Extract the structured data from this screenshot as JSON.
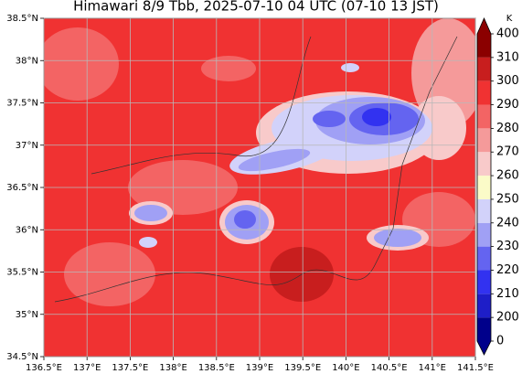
{
  "chart_data": {
    "type": "map",
    "title": "Himawari 8/9 Tbb, 2025-07-10 04 UTC (07-10 13 JST)",
    "xlim": [
      136.5,
      141.5
    ],
    "ylim": [
      34.5,
      38.5
    ],
    "xticks": [
      {
        "value": 136.5,
        "label": "136.5°E"
      },
      {
        "value": 137,
        "label": "137°E"
      },
      {
        "value": 137.5,
        "label": "137.5°E"
      },
      {
        "value": 138,
        "label": "138°E"
      },
      {
        "value": 138.5,
        "label": "138.5°E"
      },
      {
        "value": 139,
        "label": "139°E"
      },
      {
        "value": 139.5,
        "label": "139.5°E"
      },
      {
        "value": 140,
        "label": "140°E"
      },
      {
        "value": 140.5,
        "label": "140.5°E"
      },
      {
        "value": 141,
        "label": "141°E"
      },
      {
        "value": 141.5,
        "label": "141.5°E"
      }
    ],
    "yticks": [
      {
        "value": 34.5,
        "label": "34.5°N"
      },
      {
        "value": 35,
        "label": "35°N"
      },
      {
        "value": 35.5,
        "label": "35.5°N"
      },
      {
        "value": 36,
        "label": "36°N"
      },
      {
        "value": 36.5,
        "label": "36.5°N"
      },
      {
        "value": 37,
        "label": "37°N"
      },
      {
        "value": 37.5,
        "label": "37.5°N"
      },
      {
        "value": 38,
        "label": "38°N"
      },
      {
        "value": 38.5,
        "label": "38.5°N"
      }
    ],
    "grid": true,
    "colorbar": {
      "label": "K",
      "ticks": [
        0,
        200,
        210,
        220,
        230,
        240,
        250,
        260,
        270,
        280,
        290,
        300,
        310,
        400
      ],
      "colors": [
        "#00008b",
        "#1e1ec8",
        "#3232f0",
        "#6464f0",
        "#a0a0f5",
        "#d2d2fa",
        "#fbfbc8",
        "#f8caca",
        "#f59a9a",
        "#f36464",
        "#f03232",
        "#c81e1e",
        "#8b0000"
      ]
    }
  }
}
